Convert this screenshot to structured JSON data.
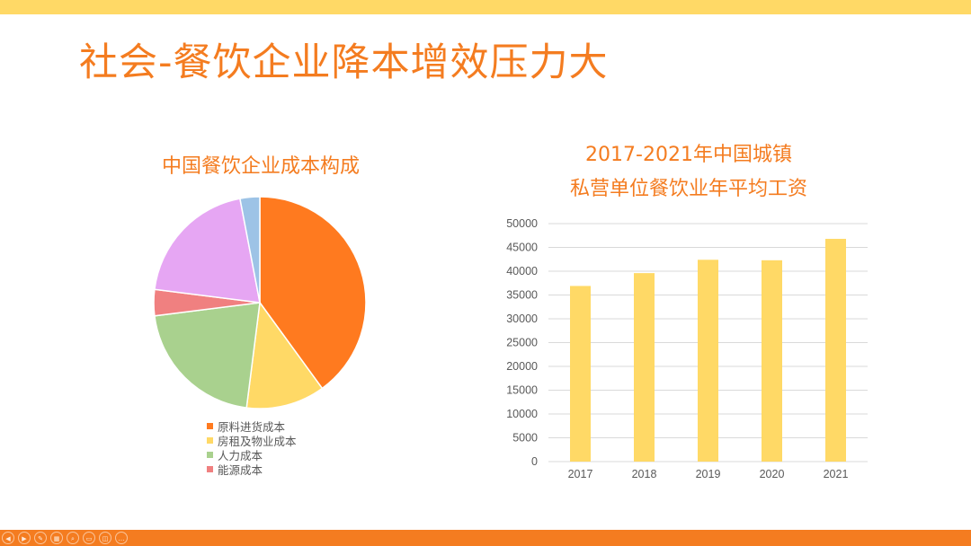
{
  "slide": {
    "title": "社会-餐饮企业降本增效压力大"
  },
  "colors": {
    "top_bar": "#FFD966",
    "bottom_bar": "#F47C20",
    "title": "#F47C20"
  },
  "toolbar": {
    "buttons": [
      {
        "icon": "prev-icon",
        "glyph": "◀"
      },
      {
        "icon": "next-icon",
        "glyph": "▶"
      },
      {
        "icon": "pen-icon",
        "glyph": "✎"
      },
      {
        "icon": "slides-icon",
        "glyph": "▦"
      },
      {
        "icon": "zoom-icon",
        "glyph": "⌕"
      },
      {
        "icon": "subtitles-icon",
        "glyph": "▭"
      },
      {
        "icon": "camera-icon",
        "glyph": "◫"
      },
      {
        "icon": "more-icon",
        "glyph": "…"
      }
    ]
  },
  "chart_data": [
    {
      "type": "pie",
      "title": "中国餐饮企业成本构成",
      "legend_placement": "bottom",
      "slices": [
        {
          "label": "原料进货成本",
          "value": 40,
          "color": "#FF7A1F"
        },
        {
          "label": "房租及物业成本",
          "value": 12,
          "color": "#FFD966"
        },
        {
          "label": "人力成本",
          "value": 21,
          "color": "#A9D18E"
        },
        {
          "label": "能源成本",
          "value": 4,
          "color": "#F08080"
        },
        {
          "label": "",
          "value": 20,
          "color": "#E6A6F3"
        },
        {
          "label": "",
          "value": 3,
          "color": "#9DC3E6"
        }
      ],
      "legend": [
        "原料进货成本",
        "房租及物业成本",
        "人力成本",
        "能源成本"
      ]
    },
    {
      "type": "bar",
      "title_lines": [
        "2017-2021年中国城镇",
        "私营单位餐饮业年平均工资"
      ],
      "categories": [
        "2017",
        "2018",
        "2019",
        "2020",
        "2021"
      ],
      "values": [
        36900,
        39600,
        42400,
        42300,
        46800
      ],
      "ylim": [
        0,
        50000
      ],
      "yticks": [
        0,
        5000,
        10000,
        15000,
        20000,
        25000,
        30000,
        35000,
        40000,
        45000,
        50000
      ],
      "grid": true,
      "bar_color": "#FFD966"
    }
  ]
}
